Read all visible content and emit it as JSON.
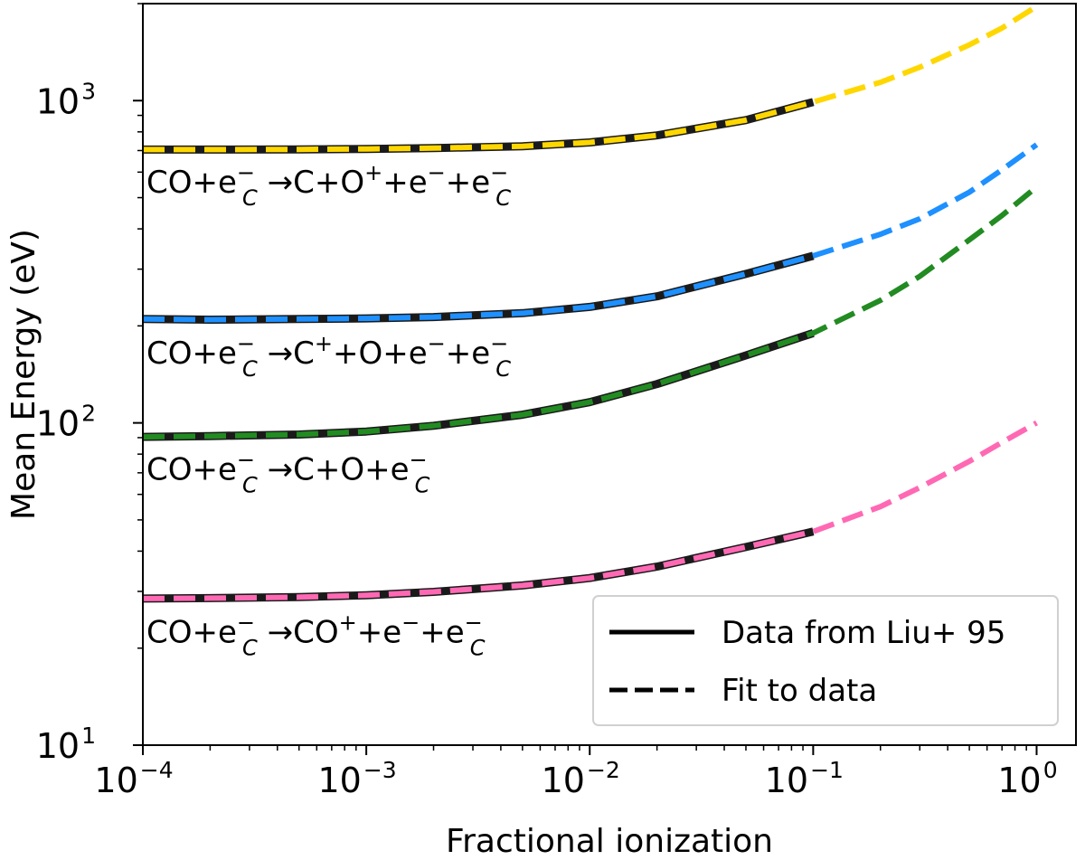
{
  "chart_data": {
    "type": "line",
    "xscale": "log",
    "yscale": "log",
    "xlim": [
      0.0001,
      1.5
    ],
    "ylim": [
      10,
      2000
    ],
    "xlabel": "Fractional ionization",
    "ylabel": "Mean Energy (eV)",
    "x_ticks": [
      {
        "value": 0.0001,
        "label": "10",
        "exp": "-4"
      },
      {
        "value": 0.001,
        "label": "10",
        "exp": "-3"
      },
      {
        "value": 0.01,
        "label": "10",
        "exp": "-2"
      },
      {
        "value": 0.1,
        "label": "10",
        "exp": "-1"
      },
      {
        "value": 1,
        "label": "10",
        "exp": "0"
      }
    ],
    "y_ticks": [
      {
        "value": 10,
        "label": "10",
        "exp": "1"
      },
      {
        "value": 100,
        "label": "10",
        "exp": "2"
      },
      {
        "value": 1000,
        "label": "10",
        "exp": "3"
      }
    ],
    "series": [
      {
        "name": "CO+e_C^- -> C+O^+ +e^- +e_C^-",
        "color": "#FFD700",
        "data_x": [
          0.0001,
          0.0002,
          0.0005,
          0.001,
          0.002,
          0.005,
          0.01,
          0.02,
          0.05,
          0.1
        ],
        "data_y": [
          705,
          705,
          706,
          708,
          712,
          722,
          742,
          780,
          870,
          990
        ],
        "fit_x": [
          0.0001,
          0.0002,
          0.0005,
          0.001,
          0.002,
          0.005,
          0.01,
          0.02,
          0.05,
          0.1,
          0.2,
          0.3,
          0.5,
          0.7,
          1.0
        ],
        "fit_y": [
          705,
          705,
          706,
          708,
          712,
          722,
          742,
          780,
          870,
          990,
          1140,
          1270,
          1490,
          1680,
          1960
        ]
      },
      {
        "name": "CO+e_C^- -> C^+ +O+e^- +e_C^-",
        "color": "#1E90FF",
        "data_x": [
          0.0001,
          0.0002,
          0.0005,
          0.001,
          0.002,
          0.005,
          0.01,
          0.02,
          0.05,
          0.1
        ],
        "data_y": [
          210,
          209,
          210,
          211,
          213,
          219,
          229,
          247,
          290,
          330
        ],
        "fit_x": [
          0.0001,
          0.0002,
          0.0005,
          0.001,
          0.002,
          0.005,
          0.01,
          0.02,
          0.05,
          0.1,
          0.2,
          0.3,
          0.5,
          0.7,
          1.0
        ],
        "fit_y": [
          210,
          209,
          210,
          211,
          213,
          219,
          229,
          247,
          290,
          330,
          385,
          430,
          520,
          610,
          730
        ]
      },
      {
        "name": "CO+e_C^- -> C+O+e_C^-",
        "color": "#228B22",
        "data_x": [
          0.0001,
          0.0002,
          0.0005,
          0.001,
          0.002,
          0.005,
          0.01,
          0.02,
          0.05,
          0.1
        ],
        "data_y": [
          90.5,
          91,
          92,
          94,
          98,
          106,
          116,
          132,
          162,
          190
        ],
        "fit_x": [
          0.0001,
          0.0002,
          0.0005,
          0.001,
          0.002,
          0.005,
          0.01,
          0.02,
          0.05,
          0.1,
          0.2,
          0.3,
          0.5,
          0.7,
          1.0
        ],
        "fit_y": [
          90.5,
          91,
          92,
          94,
          98,
          106,
          116,
          132,
          162,
          190,
          240,
          285,
          370,
          440,
          540
        ]
      },
      {
        "name": "CO+e_C^- -> CO^+ +e^- +e_C^-",
        "color": "#FF69B4",
        "data_x": [
          0.0001,
          0.0002,
          0.0005,
          0.001,
          0.002,
          0.005,
          0.01,
          0.02,
          0.05,
          0.1
        ],
        "data_y": [
          28.5,
          28.6,
          28.8,
          29.2,
          29.9,
          31.3,
          33,
          35.8,
          41.2,
          46
        ],
        "fit_x": [
          0.0001,
          0.0002,
          0.0005,
          0.001,
          0.002,
          0.005,
          0.01,
          0.02,
          0.05,
          0.1,
          0.2,
          0.3,
          0.5,
          0.7,
          1.0
        ],
        "fit_y": [
          28.5,
          28.6,
          28.8,
          29.2,
          29.9,
          31.3,
          33,
          35.8,
          41.2,
          46,
          55,
          63,
          76,
          87,
          100
        ]
      }
    ],
    "annotations": [
      {
        "base": "CO+e",
        "sup": "−",
        "sub": "C",
        "rest": [
          {
            "t": " →C+O"
          },
          {
            "t": "+",
            "s": "sup"
          },
          {
            "t": "+e"
          },
          {
            "t": "−",
            "s": "sup"
          },
          {
            "t": "+e"
          },
          {
            "t": "−",
            "s": "supsub",
            "sub": "C"
          }
        ],
        "anchor_x": 0.0001,
        "anchor_y": 560
      },
      {
        "base": "CO+e",
        "sup": "−",
        "sub": "C",
        "rest": [
          {
            "t": " →C"
          },
          {
            "t": "+",
            "s": "sup"
          },
          {
            "t": "+O+e"
          },
          {
            "t": "−",
            "s": "sup"
          },
          {
            "t": "+e"
          },
          {
            "t": "−",
            "s": "supsub",
            "sub": "C"
          }
        ],
        "anchor_x": 0.0001,
        "anchor_y": 165
      },
      {
        "base": "CO+e",
        "sup": "−",
        "sub": "C",
        "rest": [
          {
            "t": " →C+O+e"
          },
          {
            "t": "−",
            "s": "supsub",
            "sub": "C"
          }
        ],
        "anchor_x": 0.0001,
        "anchor_y": 72
      },
      {
        "base": "CO+e",
        "sup": "−",
        "sub": "C",
        "rest": [
          {
            "t": " →CO"
          },
          {
            "t": "+",
            "s": "sup"
          },
          {
            "t": "+e"
          },
          {
            "t": "−",
            "s": "sup"
          },
          {
            "t": "+e"
          },
          {
            "t": "−",
            "s": "supsub",
            "sub": "C"
          }
        ],
        "anchor_x": 0.0001,
        "anchor_y": 22.5
      }
    ],
    "annotation_texts": [
      "CO+e_C^- →C+O^+ +e^- +e_C^-",
      "CO+e_C^- →C^+ +O+e^- +e_C^-",
      "CO+e_C^- →C+O+e_C^-",
      "CO+e_C^- →CO^+ +e^- +e_C^-"
    ],
    "legend": {
      "position": "bottom-right",
      "entries": [
        {
          "label": "Data from Liu+ 95",
          "style": "solid"
        },
        {
          "label": "Fit to data",
          "style": "dashed"
        }
      ]
    },
    "data_line_color": "#1a1a1a",
    "axis_color": "#000000"
  }
}
